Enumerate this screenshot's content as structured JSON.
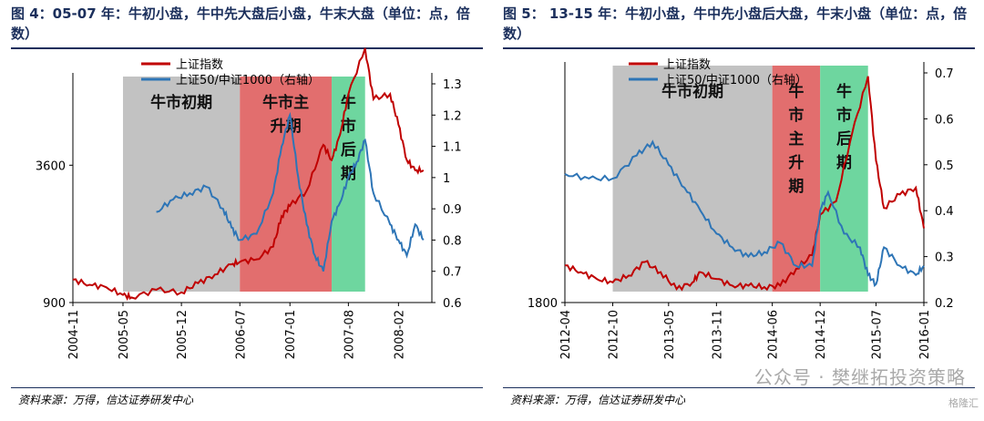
{
  "charts": [
    {
      "title": "图 4：05-07 年：牛初小盘，牛中先大盘后小盘，牛末大盘（单位：点，倍数）",
      "source": "资料来源：万得，信达证券研发中心"
    },
    {
      "title": "图 5： 13-15 年：牛初小盘，牛中先小盘后大盘，牛末小盘（单位：点，倍数）",
      "source": "资料来源：万得，信达证券研发中心"
    }
  ],
  "watermark": {
    "text": "公众号 · 樊继拓投资策略",
    "badge": "格隆汇"
  },
  "colors": {
    "series1": "#c00000",
    "series2": "#2e75b6",
    "phase1": "#bfbfbf",
    "phase2": "#e06666",
    "phase3": "#66d49a",
    "title": "#1b2f5c"
  },
  "chart_data": [
    {
      "type": "line",
      "legend": [
        "上证指数",
        "上证50/中证1000（右轴）"
      ],
      "x_ticks": [
        "2004-11",
        "2005-05",
        "2005-12",
        "2006-07",
        "2007-01",
        "2007-08",
        "2008-02"
      ],
      "y_left_ticks": [
        "3600",
        "900"
      ],
      "y_left_range": [
        900,
        5200
      ],
      "y_right_ticks": [
        "1.3",
        "1.2",
        "1.1",
        "1",
        "0.9",
        "0.8",
        "0.7",
        "0.6"
      ],
      "y_right_range": [
        0.6,
        1.3
      ],
      "x_range": [
        "2004-11",
        "2008-06"
      ],
      "phases": [
        {
          "label": "牛市初期",
          "start": "2005-05",
          "end": "2006-07"
        },
        {
          "label": "牛市主升期",
          "start": "2006-07",
          "end": "2007-06"
        },
        {
          "label": "牛市后期",
          "start": "2007-06",
          "end": "2007-10"
        }
      ],
      "series": [
        {
          "name": "上证指数",
          "axis": "left",
          "points": [
            [
              "2004-11",
              1350
            ],
            [
              "2005-01",
              1250
            ],
            [
              "2005-03",
              1200
            ],
            [
              "2005-05",
              1050
            ],
            [
              "2005-06",
              1000
            ],
            [
              "2005-09",
              1150
            ],
            [
              "2005-12",
              1100
            ],
            [
              "2006-02",
              1280
            ],
            [
              "2006-04",
              1450
            ],
            [
              "2006-06",
              1650
            ],
            [
              "2006-07",
              1700
            ],
            [
              "2006-09",
              1750
            ],
            [
              "2006-11",
              2000
            ],
            [
              "2006-12",
              2600
            ],
            [
              "2007-01",
              2800
            ],
            [
              "2007-03",
              3100
            ],
            [
              "2007-05",
              4000
            ],
            [
              "2007-06",
              3700
            ],
            [
              "2007-07",
              4200
            ],
            [
              "2007-08",
              5000
            ],
            [
              "2007-10",
              5900
            ],
            [
              "2007-11",
              4900
            ],
            [
              "2008-01",
              5000
            ],
            [
              "2008-02",
              4400
            ],
            [
              "2008-03",
              3700
            ],
            [
              "2008-04",
              3500
            ],
            [
              "2008-05",
              3500
            ]
          ]
        },
        {
          "name": "上证50/中证1000（右轴）",
          "axis": "right",
          "points": [
            [
              "2005-09",
              0.89
            ],
            [
              "2005-11",
              0.93
            ],
            [
              "2006-01",
              0.95
            ],
            [
              "2006-03",
              0.97
            ],
            [
              "2006-05",
              0.9
            ],
            [
              "2006-06",
              0.84
            ],
            [
              "2006-07",
              0.8
            ],
            [
              "2006-09",
              0.82
            ],
            [
              "2006-11",
              0.95
            ],
            [
              "2006-12",
              1.1
            ],
            [
              "2007-01",
              1.2
            ],
            [
              "2007-02",
              1.0
            ],
            [
              "2007-03",
              0.85
            ],
            [
              "2007-04",
              0.75
            ],
            [
              "2007-05",
              0.7
            ],
            [
              "2007-06",
              0.86
            ],
            [
              "2007-07",
              0.92
            ],
            [
              "2007-08",
              1.0
            ],
            [
              "2007-09",
              1.05
            ],
            [
              "2007-10",
              1.12
            ],
            [
              "2007-11",
              0.95
            ],
            [
              "2008-01",
              0.85
            ],
            [
              "2008-02",
              0.8
            ],
            [
              "2008-03",
              0.75
            ],
            [
              "2008-04",
              0.85
            ],
            [
              "2008-05",
              0.8
            ]
          ]
        }
      ]
    },
    {
      "type": "line",
      "legend": [
        "上证指数",
        "上证50/中证1000（右轴）"
      ],
      "x_ticks": [
        "2012-04",
        "2012-10",
        "2013-05",
        "2013-11",
        "2014-06",
        "2014-12",
        "2015-07",
        "2016-01"
      ],
      "y_left_ticks": [
        "1800"
      ],
      "y_left_range": [
        1800,
        5200
      ],
      "y_right_ticks": [
        "0.7",
        "0.6",
        "0.5",
        "0.4",
        "0.3",
        "0.2"
      ],
      "y_right_range": [
        0.2,
        0.7
      ],
      "x_range": [
        "2012-04",
        "2016-01"
      ],
      "phases": [
        {
          "label": "牛市初期",
          "start": "2012-10",
          "end": "2014-06"
        },
        {
          "label": "牛市主升期",
          "start": "2014-06",
          "end": "2014-12"
        },
        {
          "label": "牛市后期",
          "start": "2014-12",
          "end": "2015-06"
        }
      ],
      "series": [
        {
          "name": "上证指数",
          "axis": "left",
          "points": [
            [
              "2012-04",
              2350
            ],
            [
              "2012-06",
              2250
            ],
            [
              "2012-08",
              2150
            ],
            [
              "2012-10",
              2100
            ],
            [
              "2012-12",
              2200
            ],
            [
              "2013-02",
              2400
            ],
            [
              "2013-04",
              2250
            ],
            [
              "2013-06",
              2000
            ],
            [
              "2013-08",
              2100
            ],
            [
              "2013-09",
              2250
            ],
            [
              "2013-11",
              2150
            ],
            [
              "2014-01",
              2050
            ],
            [
              "2014-03",
              2050
            ],
            [
              "2014-05",
              2030
            ],
            [
              "2014-07",
              2050
            ],
            [
              "2014-09",
              2300
            ],
            [
              "2014-11",
              2500
            ],
            [
              "2014-12",
              3100
            ],
            [
              "2015-02",
              3300
            ],
            [
              "2015-04",
              4300
            ],
            [
              "2015-06",
              5150
            ],
            [
              "2015-07",
              3900
            ],
            [
              "2015-08",
              3200
            ],
            [
              "2015-10",
              3400
            ],
            [
              "2015-12",
              3500
            ],
            [
              "2016-01",
              2900
            ]
          ]
        },
        {
          "name": "上证50/中证1000（右轴）",
          "axis": "right",
          "points": [
            [
              "2012-04",
              0.48
            ],
            [
              "2012-07",
              0.47
            ],
            [
              "2012-10",
              0.47
            ],
            [
              "2013-01",
              0.52
            ],
            [
              "2013-03",
              0.55
            ],
            [
              "2013-05",
              0.5
            ],
            [
              "2013-07",
              0.45
            ],
            [
              "2013-09",
              0.4
            ],
            [
              "2013-11",
              0.35
            ],
            [
              "2014-01",
              0.32
            ],
            [
              "2014-03",
              0.3
            ],
            [
              "2014-05",
              0.31
            ],
            [
              "2014-07",
              0.33
            ],
            [
              "2014-09",
              0.28
            ],
            [
              "2014-11",
              0.28
            ],
            [
              "2014-12",
              0.4
            ],
            [
              "2015-01",
              0.44
            ],
            [
              "2015-03",
              0.35
            ],
            [
              "2015-05",
              0.32
            ],
            [
              "2015-06",
              0.26
            ],
            [
              "2015-07",
              0.24
            ],
            [
              "2015-08",
              0.32
            ],
            [
              "2015-10",
              0.28
            ],
            [
              "2015-12",
              0.26
            ],
            [
              "2016-01",
              0.28
            ]
          ]
        }
      ]
    }
  ]
}
